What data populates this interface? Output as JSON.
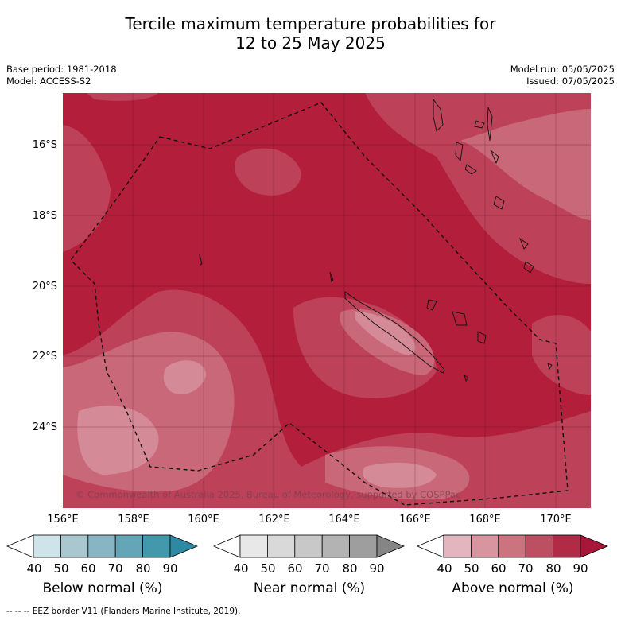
{
  "title_line1": "Tercile maximum temperature probabilities for",
  "title_line2": "12 to 25 May 2025",
  "meta_left": [
    "Base period: 1981-2018",
    "Model: ACCESS-S2"
  ],
  "meta_right": [
    "Model run: 05/05/2025",
    "Issued: 07/05/2025"
  ],
  "latitude_labels": [
    "16°S",
    "18°S",
    "20°S",
    "22°S",
    "24°S"
  ],
  "longitude_labels": [
    "156°E",
    "158°E",
    "160°E",
    "162°E",
    "164°E",
    "166°E",
    "168°E",
    "170°E"
  ],
  "copyright": "© Commonwealth of Australia 2025, Bureau of Meteorology, supported by COSPPac",
  "colorbars": [
    {
      "title": "Below normal (%)",
      "ticks": [
        "40",
        "50",
        "60",
        "70",
        "80",
        "90"
      ],
      "colors": [
        "#ffffff",
        "#cfe4ea",
        "#a8c7cf",
        "#87b5c3",
        "#64a6b8",
        "#4399ab",
        "#2d8aa2"
      ]
    },
    {
      "title": "Near normal (%)",
      "ticks": [
        "40",
        "50",
        "60",
        "70",
        "80",
        "90"
      ],
      "colors": [
        "#ffffff",
        "#e8e8e8",
        "#d9d9d9",
        "#c8c8c8",
        "#b3b3b3",
        "#9e9e9e",
        "#858585"
      ]
    },
    {
      "title": "Above normal (%)",
      "ticks": [
        "40",
        "50",
        "60",
        "70",
        "80",
        "90"
      ],
      "colors": [
        "#ffffff",
        "#e3b5be",
        "#d8949f",
        "#cb7480",
        "#bd4f63",
        "#b12a46",
        "#a8173a"
      ]
    }
  ],
  "footer": "--  --  -- EEZ border V11 (Flanders Marine Institute, 2019)."
}
